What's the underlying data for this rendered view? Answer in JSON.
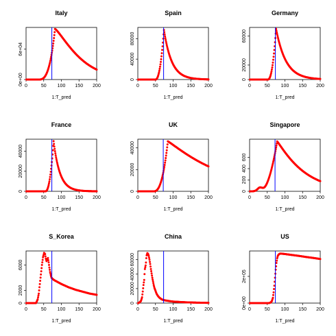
{
  "colors": {
    "points": "#ff0000",
    "vline": "#0000ff",
    "axis": "#000000"
  },
  "chart_data": [
    {
      "type": "scatter",
      "title": "Italy",
      "xlabel": "1:T_pred",
      "ylabel": "",
      "xlim": [
        0,
        200
      ],
      "ylim": [
        0,
        103000
      ],
      "xticks": [
        0,
        50,
        100,
        150,
        200
      ],
      "yticks": [
        0,
        60000
      ],
      "yticklabels": [
        "0e+00",
        "6e+04"
      ],
      "vline": 73,
      "curve": {
        "start": 1,
        "end": 200,
        "onset": 35,
        "peak": 82,
        "max": 100000,
        "rise_shape": 3.0,
        "fall_scale": 80,
        "fall_power": 1.25,
        "secondary": null,
        "base": 0
      }
    },
    {
      "type": "scatter",
      "title": "Spain",
      "xlabel": "1:T_pred",
      "ylabel": "",
      "xlim": [
        0,
        200
      ],
      "ylim": [
        0,
        102000
      ],
      "xticks": [
        0,
        50,
        100,
        150,
        200
      ],
      "yticks": [
        0,
        40000,
        80000
      ],
      "yticklabels": [
        "0",
        "40000",
        "80000"
      ],
      "vline": 73,
      "curve": {
        "start": 1,
        "end": 200,
        "onset": 50,
        "peak": 74,
        "max": 97000,
        "rise_shape": 2.2,
        "fall_scale": 22,
        "fall_power": 1.0,
        "secondary": null,
        "base": 0
      }
    },
    {
      "type": "scatter",
      "title": "Germany",
      "xlabel": "1:T_pred",
      "ylabel": "",
      "xlim": [
        0,
        200
      ],
      "ylim": [
        0,
        72000
      ],
      "xticks": [
        0,
        50,
        100,
        150,
        200
      ],
      "yticks": [
        0,
        20000,
        60000
      ],
      "yticklabels": [
        "0",
        "20000",
        "60000"
      ],
      "vline": 73,
      "curve": {
        "start": 1,
        "end": 200,
        "onset": 52,
        "peak": 75,
        "max": 70000,
        "rise_shape": 2.2,
        "fall_scale": 28,
        "fall_power": 1.0,
        "secondary": null,
        "base": 0
      }
    },
    {
      "type": "scatter",
      "title": "France",
      "xlabel": "1:T_pred",
      "ylabel": "",
      "xlim": [
        0,
        200
      ],
      "ylim": [
        0,
        52000
      ],
      "xticks": [
        0,
        50,
        100,
        150,
        200
      ],
      "yticks": [
        0,
        20000,
        40000
      ],
      "yticklabels": [
        "0",
        "20000",
        "40000"
      ],
      "vline": 73,
      "curve": {
        "start": 1,
        "end": 200,
        "onset": 55,
        "peak": 78,
        "max": 50000,
        "rise_shape": 2.2,
        "fall_scale": 18,
        "fall_power": 1.0,
        "secondary": null,
        "base": 0
      }
    },
    {
      "type": "scatter",
      "title": "UK",
      "xlabel": "1:T_pred",
      "ylabel": "",
      "xlim": [
        0,
        200
      ],
      "ylim": [
        0,
        48000
      ],
      "xticks": [
        0,
        50,
        100,
        150,
        200
      ],
      "yticks": [
        0,
        20000,
        40000
      ],
      "yticklabels": [
        "0",
        "20000",
        "40000"
      ],
      "vline": 72,
      "curve": {
        "start": 1,
        "end": 200,
        "onset": 45,
        "peak": 85,
        "max": 46000,
        "rise_shape": 2.5,
        "fall_scale": 160,
        "fall_power": 1.1,
        "secondary": null,
        "base": 0
      }
    },
    {
      "type": "scatter",
      "title": "Singapore",
      "xlabel": "1:T_pred",
      "ylabel": "",
      "xlim": [
        0,
        200
      ],
      "ylim": [
        0,
        920
      ],
      "xticks": [
        0,
        50,
        100,
        150,
        200
      ],
      "yticks": [
        0,
        200,
        400,
        600
      ],
      "yticklabels": [
        "0",
        "200",
        "400",
        "600"
      ],
      "vline": 72,
      "curve": {
        "start": 1,
        "end": 200,
        "onset": 30,
        "peak": 78,
        "max": 880,
        "rise_shape": 2.0,
        "fall_scale": 80,
        "fall_power": 1.1,
        "secondary": {
          "center": 30,
          "width": 10,
          "height": 70
        },
        "base": 0
      }
    },
    {
      "type": "scatter",
      "title": "S_Korea",
      "xlabel": "1:T_pred",
      "ylabel": "",
      "xlim": [
        0,
        200
      ],
      "ylim": [
        0,
        8200
      ],
      "xticks": [
        0,
        50,
        100,
        150,
        200
      ],
      "yticks": [
        0,
        2000,
        6000
      ],
      "yticklabels": [
        "0",
        "2000",
        "6000"
      ],
      "vline": 73,
      "curve": {
        "start": 1,
        "end": 200,
        "onset": 22,
        "peak": 50,
        "max": 7900,
        "rise_shape": 2.8,
        "fall_scale": 6,
        "fall_power": 1.0,
        "secondary": null,
        "base": 0,
        "custom": [
          [
            28,
            0
          ],
          [
            30,
            200
          ],
          [
            33,
            600
          ],
          [
            36,
            1500
          ],
          [
            39,
            3000
          ],
          [
            42,
            4500
          ],
          [
            45,
            6000
          ],
          [
            48,
            7200
          ],
          [
            51,
            7900
          ],
          [
            54,
            7700
          ],
          [
            56,
            7000
          ],
          [
            58,
            6600
          ],
          [
            60,
            6900
          ],
          [
            62,
            7100
          ],
          [
            64,
            6400
          ],
          [
            66,
            5600
          ],
          [
            68,
            4900
          ],
          [
            70,
            4400
          ],
          [
            72,
            4000
          ],
          [
            75,
            3800
          ],
          [
            80,
            3600
          ],
          [
            90,
            3300
          ],
          [
            100,
            3000
          ],
          [
            110,
            2750
          ],
          [
            120,
            2500
          ],
          [
            130,
            2300
          ],
          [
            140,
            2100
          ],
          [
            150,
            1950
          ],
          [
            160,
            1800
          ],
          [
            170,
            1650
          ],
          [
            180,
            1500
          ],
          [
            190,
            1400
          ],
          [
            200,
            1300
          ]
        ]
      }
    },
    {
      "type": "scatter",
      "title": "China",
      "xlabel": "1:T_pred",
      "ylabel": "",
      "xlim": [
        0,
        200
      ],
      "ylim": [
        0,
        72000
      ],
      "xticks": [
        0,
        50,
        100,
        150,
        200
      ],
      "yticks": [
        0,
        20000,
        40000,
        60000
      ],
      "yticklabels": [
        "0",
        "20000",
        "40000",
        "60000"
      ],
      "vline": 73,
      "curve": {
        "start": 1,
        "end": 200,
        "onset": 0,
        "peak": 28,
        "max": 70000,
        "rise_shape": 2.0,
        "fall_scale": 12,
        "fall_power": 1.0,
        "secondary": null,
        "base": 0,
        "custom": [
          [
            1,
            0
          ],
          [
            5,
            1000
          ],
          [
            9,
            3000
          ],
          [
            12,
            8000
          ],
          [
            14,
            16000
          ],
          [
            16,
            25000
          ],
          [
            18,
            32000
          ],
          [
            19,
            40000
          ],
          [
            20,
            47000
          ],
          [
            22,
            52000
          ],
          [
            23,
            56000
          ],
          [
            24,
            62000
          ],
          [
            25,
            66000
          ],
          [
            27,
            69000
          ],
          [
            29,
            68000
          ],
          [
            31,
            65000
          ],
          [
            33,
            60000
          ],
          [
            35,
            54000
          ],
          [
            37,
            47000
          ],
          [
            39,
            41000
          ],
          [
            41,
            35000
          ],
          [
            43,
            30000
          ],
          [
            45,
            25000
          ],
          [
            47,
            21000
          ],
          [
            50,
            17000
          ],
          [
            53,
            13000
          ],
          [
            56,
            10500
          ],
          [
            60,
            8000
          ],
          [
            65,
            6000
          ],
          [
            70,
            4600
          ],
          [
            80,
            3500
          ],
          [
            90,
            2700
          ],
          [
            100,
            2100
          ],
          [
            120,
            1500
          ],
          [
            140,
            1000
          ],
          [
            160,
            700
          ],
          [
            180,
            500
          ],
          [
            200,
            350
          ]
        ]
      }
    },
    {
      "type": "scatter",
      "title": "US",
      "xlabel": "1:T_pred",
      "ylabel": "",
      "xlim": [
        0,
        200
      ],
      "ylim": [
        0,
        390000
      ],
      "xticks": [
        0,
        50,
        100,
        150,
        200
      ],
      "yticks": [
        0,
        200000
      ],
      "yticklabels": [
        "0e+00",
        "2e+05"
      ],
      "vline": 73,
      "curve": {
        "start": 1,
        "end": 200,
        "onset": 55,
        "peak": 85,
        "max": 370000,
        "rise_shape": 2.0,
        "fall_scale": 900,
        "fall_power": 1.0,
        "secondary": null,
        "base": 0,
        "custom": [
          [
            1,
            0
          ],
          [
            55,
            0
          ],
          [
            60,
            5000
          ],
          [
            63,
            15000
          ],
          [
            66,
            40000
          ],
          [
            68,
            80000
          ],
          [
            70,
            130000
          ],
          [
            72,
            190000
          ],
          [
            74,
            250000
          ],
          [
            76,
            300000
          ],
          [
            78,
            335000
          ],
          [
            80,
            355000
          ],
          [
            83,
            365000
          ],
          [
            86,
            370000
          ],
          [
            90,
            370000
          ],
          [
            100,
            367000
          ],
          [
            120,
            360000
          ],
          [
            140,
            353000
          ],
          [
            160,
            345000
          ],
          [
            180,
            338000
          ],
          [
            200,
            330000
          ]
        ]
      }
    }
  ]
}
